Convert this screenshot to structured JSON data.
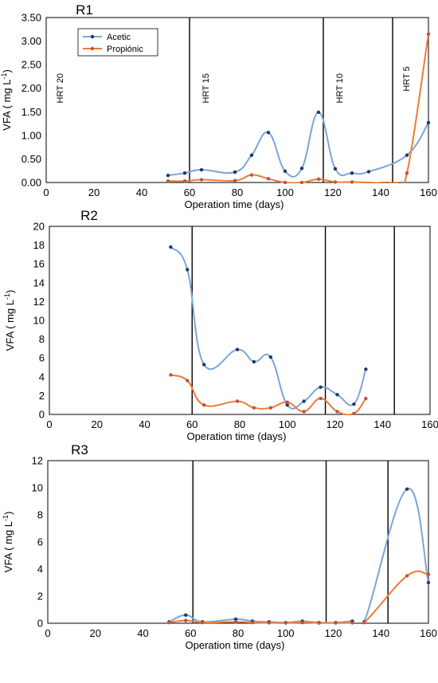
{
  "chart_data": [
    {
      "type": "line",
      "title": "R1",
      "xlabel": "Operation time (days)",
      "ylabel": "VFA ( mg L-1)",
      "xlim": [
        0,
        160
      ],
      "ylim": [
        0,
        3.5
      ],
      "xticks": [
        0,
        20,
        40,
        60,
        80,
        100,
        120,
        140,
        160
      ],
      "yticks": [
        0,
        0.5,
        1.0,
        1.5,
        2.0,
        2.5,
        3.0,
        3.5
      ],
      "ytick_labels": [
        "0.00",
        "0.50",
        "1.00",
        "1.50",
        "2.00",
        "2.50",
        "3.00",
        "3.50"
      ],
      "vlines": [
        60,
        116,
        145
      ],
      "phase_labels": [
        {
          "text": "HRT 20",
          "x": 7,
          "y": 2.0
        },
        {
          "text": "HRT 15",
          "x": 68,
          "y": 2.0
        },
        {
          "text": "HRT 10",
          "x": 124,
          "y": 2.0
        },
        {
          "text": "HRT 5",
          "x": 152,
          "y": 2.2
        }
      ],
      "legend": {
        "position": "top-left",
        "entries": [
          "Acetic",
          "Propiónic"
        ]
      },
      "series": [
        {
          "name": "Acetic",
          "color": "#7aa6d8",
          "marker": "#1f3864",
          "x": [
            51,
            58,
            65,
            79,
            86,
            93,
            100,
            107,
            114,
            121,
            128,
            135,
            151,
            160
          ],
          "y": [
            0.15,
            0.2,
            0.27,
            0.22,
            0.58,
            1.06,
            0.24,
            0.3,
            1.49,
            0.29,
            0.2,
            0.23,
            0.58,
            1.27
          ],
          "markers": [
            true,
            true,
            true,
            true,
            true,
            true,
            true,
            true,
            true,
            true,
            true,
            true,
            true,
            true
          ]
        },
        {
          "name": "Propiónic",
          "color": "#ed7d31",
          "marker": "#c0504d",
          "x": [
            51,
            58,
            65,
            79,
            86,
            93,
            100,
            107,
            114,
            121,
            128,
            135,
            146,
            151,
            160
          ],
          "y": [
            0.03,
            0.03,
            0.06,
            0.04,
            0.16,
            0.08,
            0.0,
            0.0,
            0.07,
            0.01,
            0.01,
            0.0,
            0.0,
            0.2,
            3.15
          ],
          "markers": [
            true,
            true,
            true,
            true,
            true,
            true,
            true,
            true,
            true,
            true,
            true,
            false,
            false,
            true,
            true
          ]
        }
      ]
    },
    {
      "type": "line",
      "title": "R2",
      "xlabel": "Operation time (days)",
      "ylabel": "VFA ( mg L-1)",
      "xlim": [
        0,
        160
      ],
      "ylim": [
        0,
        20
      ],
      "xticks": [
        0,
        20,
        40,
        60,
        80,
        100,
        120,
        140,
        160
      ],
      "yticks": [
        0,
        2,
        4,
        6,
        8,
        10,
        12,
        14,
        16,
        18,
        20
      ],
      "ytick_labels": [
        "0",
        "2",
        "4",
        "6",
        "8",
        "10",
        "12",
        "14",
        "16",
        "18",
        "20"
      ],
      "vlines": [
        60,
        116,
        145
      ],
      "phase_labels": [],
      "legend": null,
      "series": [
        {
          "name": "Acetic",
          "color": "#7aa6d8",
          "marker": "#1f3864",
          "x": [
            51,
            58,
            65,
            79,
            86,
            93,
            100,
            107,
            114,
            121,
            128,
            133
          ],
          "y": [
            17.8,
            15.4,
            5.3,
            6.9,
            5.6,
            6.1,
            1.0,
            1.4,
            2.9,
            2.1,
            1.1,
            4.8
          ],
          "markers": [
            true,
            true,
            true,
            true,
            true,
            true,
            true,
            true,
            true,
            true,
            true,
            true
          ]
        },
        {
          "name": "Propiónic",
          "color": "#ed7d31",
          "marker": "#c0504d",
          "x": [
            51,
            58,
            65,
            79,
            86,
            93,
            100,
            107,
            114,
            121,
            128,
            133
          ],
          "y": [
            4.2,
            3.6,
            1.0,
            1.4,
            0.7,
            0.7,
            1.3,
            0.3,
            1.7,
            0.3,
            0.1,
            1.7
          ],
          "markers": [
            true,
            true,
            true,
            true,
            true,
            true,
            true,
            true,
            true,
            true,
            true,
            true
          ]
        }
      ]
    },
    {
      "type": "line",
      "title": "R3",
      "xlabel": "Operation time (days)",
      "ylabel": "VFA ( mg L-1)",
      "xlim": [
        0,
        160
      ],
      "ylim": [
        0,
        12
      ],
      "xticks": [
        0,
        20,
        40,
        60,
        80,
        100,
        120,
        140,
        160
      ],
      "yticks": [
        0,
        2,
        4,
        6,
        8,
        10,
        12
      ],
      "ytick_labels": [
        "0",
        "2",
        "4",
        "6",
        "8",
        "10",
        "12"
      ],
      "vlines": [
        61,
        117,
        143
      ],
      "phase_labels": [],
      "legend": null,
      "series": [
        {
          "name": "Acetic",
          "color": "#7aa6d8",
          "marker": "#1f3864",
          "x": [
            51,
            58,
            65,
            79,
            86,
            93,
            100,
            107,
            114,
            121,
            128,
            133,
            151,
            160
          ],
          "y": [
            0.1,
            0.6,
            0.1,
            0.3,
            0.15,
            0.1,
            0.05,
            0.15,
            0.05,
            0.05,
            0.15,
            0.1,
            9.9,
            3.0
          ],
          "markers": [
            true,
            true,
            true,
            true,
            true,
            true,
            true,
            true,
            true,
            true,
            true,
            true,
            true,
            true
          ]
        },
        {
          "name": "Propiónic",
          "color": "#ed7d31",
          "marker": "#c0504d",
          "x": [
            51,
            58,
            65,
            79,
            86,
            93,
            100,
            107,
            114,
            121,
            128,
            133,
            151,
            160
          ],
          "y": [
            0.05,
            0.2,
            0.05,
            0.1,
            0.05,
            0.03,
            0.02,
            0.05,
            0.02,
            0.02,
            0.03,
            0.05,
            3.5,
            3.6
          ],
          "markers": [
            true,
            true,
            true,
            true,
            true,
            true,
            true,
            true,
            true,
            true,
            true,
            true,
            true,
            true
          ]
        }
      ]
    }
  ]
}
